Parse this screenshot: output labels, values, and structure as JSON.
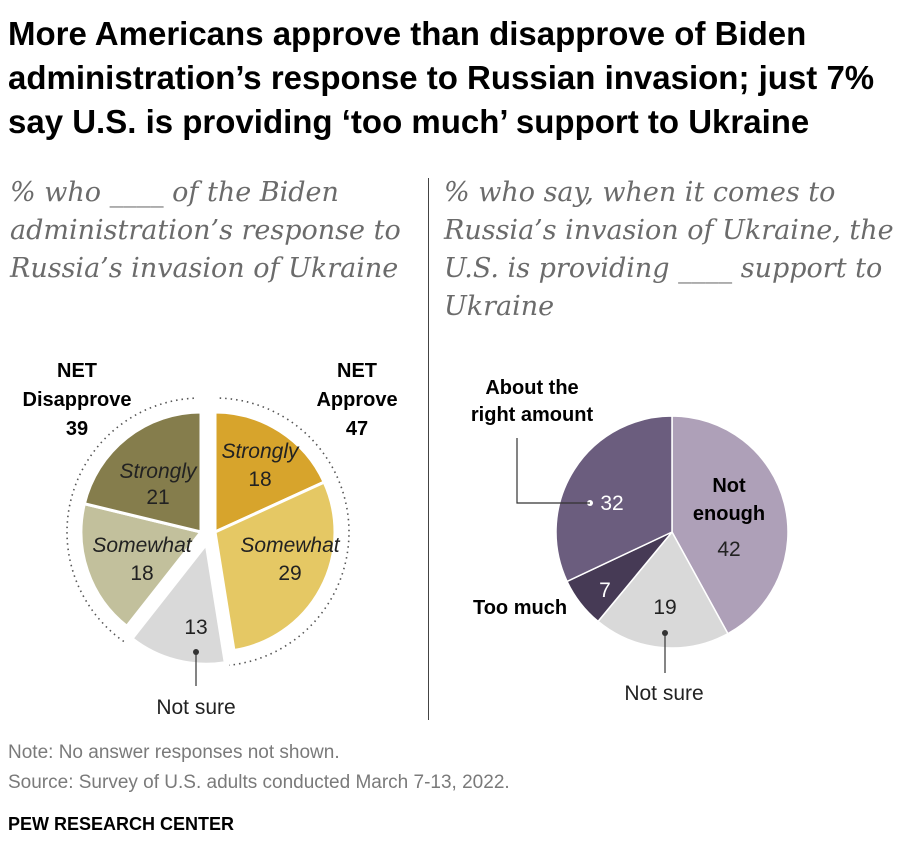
{
  "title": "More Americans approve than disapprove of Biden administration’s response to Russian invasion; just 7% say U.S. is providing ‘too much’ support to Ukraine",
  "left_subtitle": "% who ____ of the Biden administration’s response to Russia’s invasion of Ukraine",
  "right_subtitle": "% who say, when it comes to Russia’s invasion of Ukraine, the U.S. is providing ____ support to Ukraine",
  "note": "Note: No answer responses not shown.",
  "source": "Source: Survey of U.S. adults conducted March 7-13, 2022.",
  "brand": "PEW RESEARCH CENTER",
  "colors": {
    "disapprove_strongly": "#857d4c",
    "disapprove_somewhat": "#c2c09c",
    "approve_strongly": "#d7a42c",
    "approve_somewhat": "#e5c864",
    "not_sure": "#d9d9d9",
    "not_enough": "#aea0b8",
    "about_right": "#6b5d7e",
    "too_much": "#463a55"
  },
  "chart_data": [
    {
      "type": "pie",
      "title": "% who ____ of the Biden administration’s response to Russia’s invasion of Ukraine",
      "slices": [
        {
          "group": "Approve",
          "name": "Strongly",
          "value": 18
        },
        {
          "group": "Approve",
          "name": "Somewhat",
          "value": 29
        },
        {
          "group": "",
          "name": "Not sure",
          "value": 13
        },
        {
          "group": "Disapprove",
          "name": "Somewhat",
          "value": 18
        },
        {
          "group": "Disapprove",
          "name": "Strongly",
          "value": 21
        }
      ],
      "net": [
        {
          "label": "NET Approve",
          "line1": "NET",
          "line2": "Approve",
          "value": 47
        },
        {
          "label": "NET Disapprove",
          "line1": "NET",
          "line2": "Disapprove",
          "value": 39
        }
      ]
    },
    {
      "type": "pie",
      "title": "% who say, when it comes to Russia’s invasion of Ukraine, the U.S. is providing ____ support to Ukraine",
      "slices": [
        {
          "name": "Not enough",
          "value": 42
        },
        {
          "name": "Not sure",
          "value": 19
        },
        {
          "name": "Too much",
          "value": 7
        },
        {
          "name": "About the right amount",
          "value": 32
        }
      ]
    }
  ]
}
